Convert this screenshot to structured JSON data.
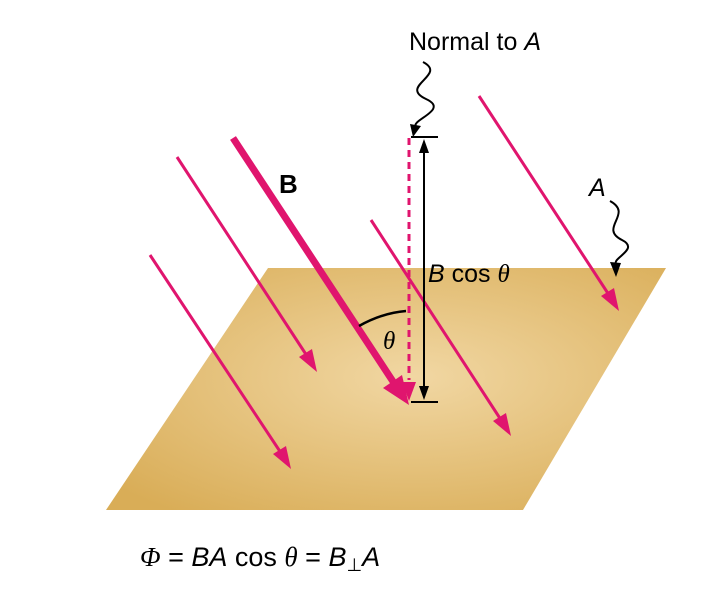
{
  "labels": {
    "normal_prefix": "Normal to ",
    "normal_var": "A",
    "field_label": "B",
    "area_label": "A",
    "component_var": "B",
    "component_fn": " cos ",
    "component_theta": "θ",
    "angle_label": "θ"
  },
  "equation": {
    "phi": "Φ",
    "eq1": " = ",
    "ba": "BA",
    "cos": " cos ",
    "theta": "θ",
    "eq2": " = ",
    "b": "B",
    "perp": "⊥",
    "a": "A"
  },
  "colors": {
    "field_arrow": "#e0156e",
    "plane_fill": "#d9ad57",
    "plane_highlight": "#f1d7a3",
    "line": "#000000"
  }
}
